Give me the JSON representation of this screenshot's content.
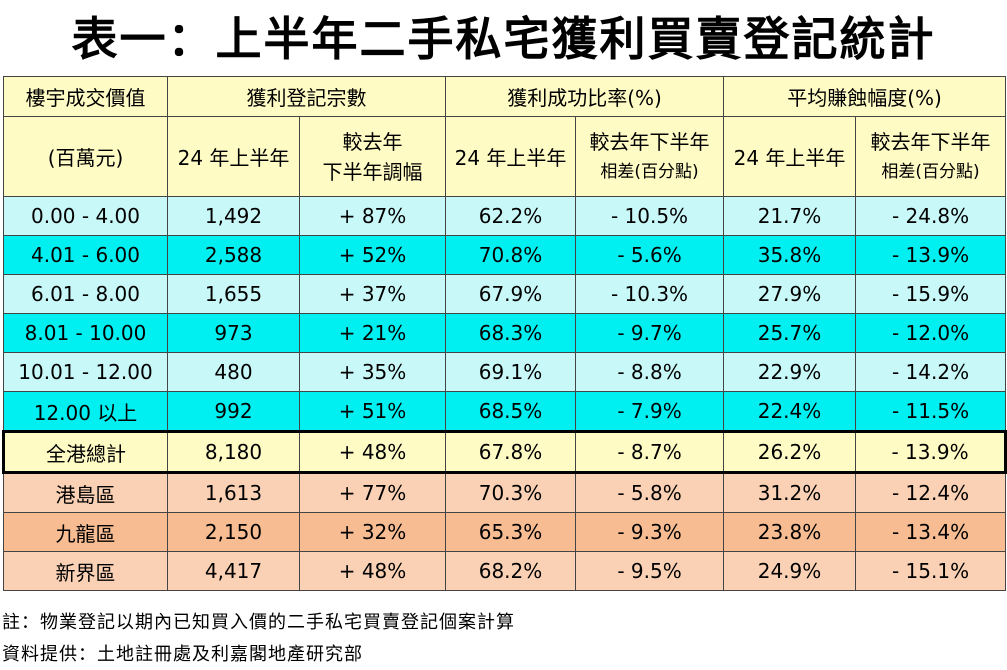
{
  "title": "表一：上半年二手私宅獲利買賣登記統計",
  "header": {
    "price_col_line1": "樓宇成交價值",
    "price_col_line2": "(百萬元)",
    "group_count": "獲利登記宗數",
    "group_rate": "獲利成功比率(%)",
    "group_margin": "平均賺蝕幅度(%)",
    "sub_h1_count": "24 年上半年",
    "sub_change_count_l1": "較去年",
    "sub_change_count_l2": "下半年調幅",
    "sub_h1_rate": "24 年上半年",
    "sub_change_rate_l1": "較去年下半年",
    "sub_change_rate_l2": "相差(百分點)",
    "sub_h1_margin": "24 年上半年",
    "sub_change_margin_l1": "較去年下半年",
    "sub_change_margin_l2": "相差(百分點)"
  },
  "chart_data": {
    "type": "table",
    "title": "表一：上半年二手私宅獲利買賣登記統計",
    "columns": [
      "樓宇成交價值(百萬元)",
      "獲利登記宗數 24 年上半年",
      "獲利登記宗數 較去年下半年調幅",
      "獲利成功比率(%) 24 年上半年",
      "獲利成功比率(%) 較去年下半年相差(百分點)",
      "平均賺蝕幅度(%) 24 年上半年",
      "平均賺蝕幅度(%) 較去年下半年相差(百分點)"
    ],
    "bands": [
      {
        "label": "0.00 - 4.00",
        "count": "1,492",
        "count_change": "+ 87%",
        "rate": "62.2%",
        "rate_change": "- 10.5%",
        "margin": "21.7%",
        "margin_change": "- 24.8%"
      },
      {
        "label": "4.01 - 6.00",
        "count": "2,588",
        "count_change": "+ 52%",
        "rate": "70.8%",
        "rate_change": "- 5.6%",
        "margin": "35.8%",
        "margin_change": "- 13.9%"
      },
      {
        "label": "6.01 - 8.00",
        "count": "1,655",
        "count_change": "+ 37%",
        "rate": "67.9%",
        "rate_change": "- 10.3%",
        "margin": "27.9%",
        "margin_change": "- 15.9%"
      },
      {
        "label": "8.01 - 10.00",
        "count": "973",
        "count_change": "+ 21%",
        "rate": "68.3%",
        "rate_change": "- 9.7%",
        "margin": "25.7%",
        "margin_change": "- 12.0%"
      },
      {
        "label": "10.01 - 12.00",
        "count": "480",
        "count_change": "+ 35%",
        "rate": "69.1%",
        "rate_change": "- 8.8%",
        "margin": "22.9%",
        "margin_change": "- 14.2%"
      },
      {
        "label": "12.00  以上",
        "count": "992",
        "count_change": "+ 51%",
        "rate": "68.5%",
        "rate_change": "- 7.9%",
        "margin": "22.4%",
        "margin_change": "- 11.5%"
      }
    ],
    "total": {
      "label": "全港總計",
      "count": "8,180",
      "count_change": "+ 48%",
      "rate": "67.8%",
      "rate_change": "- 8.7%",
      "margin": "26.2%",
      "margin_change": "- 13.9%"
    },
    "districts": [
      {
        "label": "港島區",
        "count": "1,613",
        "count_change": "+ 77%",
        "rate": "70.3%",
        "rate_change": "- 5.8%",
        "margin": "31.2%",
        "margin_change": "- 12.4%"
      },
      {
        "label": "九龍區",
        "count": "2,150",
        "count_change": "+ 32%",
        "rate": "65.3%",
        "rate_change": "- 9.3%",
        "margin": "23.8%",
        "margin_change": "- 13.4%"
      },
      {
        "label": "新界區",
        "count": "4,417",
        "count_change": "+ 48%",
        "rate": "68.2%",
        "rate_change": "- 9.5%",
        "margin": "24.9%",
        "margin_change": "- 15.1%"
      }
    ]
  },
  "notes": {
    "note": "註：物業登記以期內已知買入價的二手私宅買賣登記個案計算",
    "source": "資料提供：土地註冊處及利嘉閣地產研究部"
  },
  "colors": {
    "header_bg": "#fffbc4",
    "band_light": "#c9f8f8",
    "band_cyan": "#00f0f2",
    "district_light": "#fad1b4",
    "district_dark": "#f7bc92"
  }
}
